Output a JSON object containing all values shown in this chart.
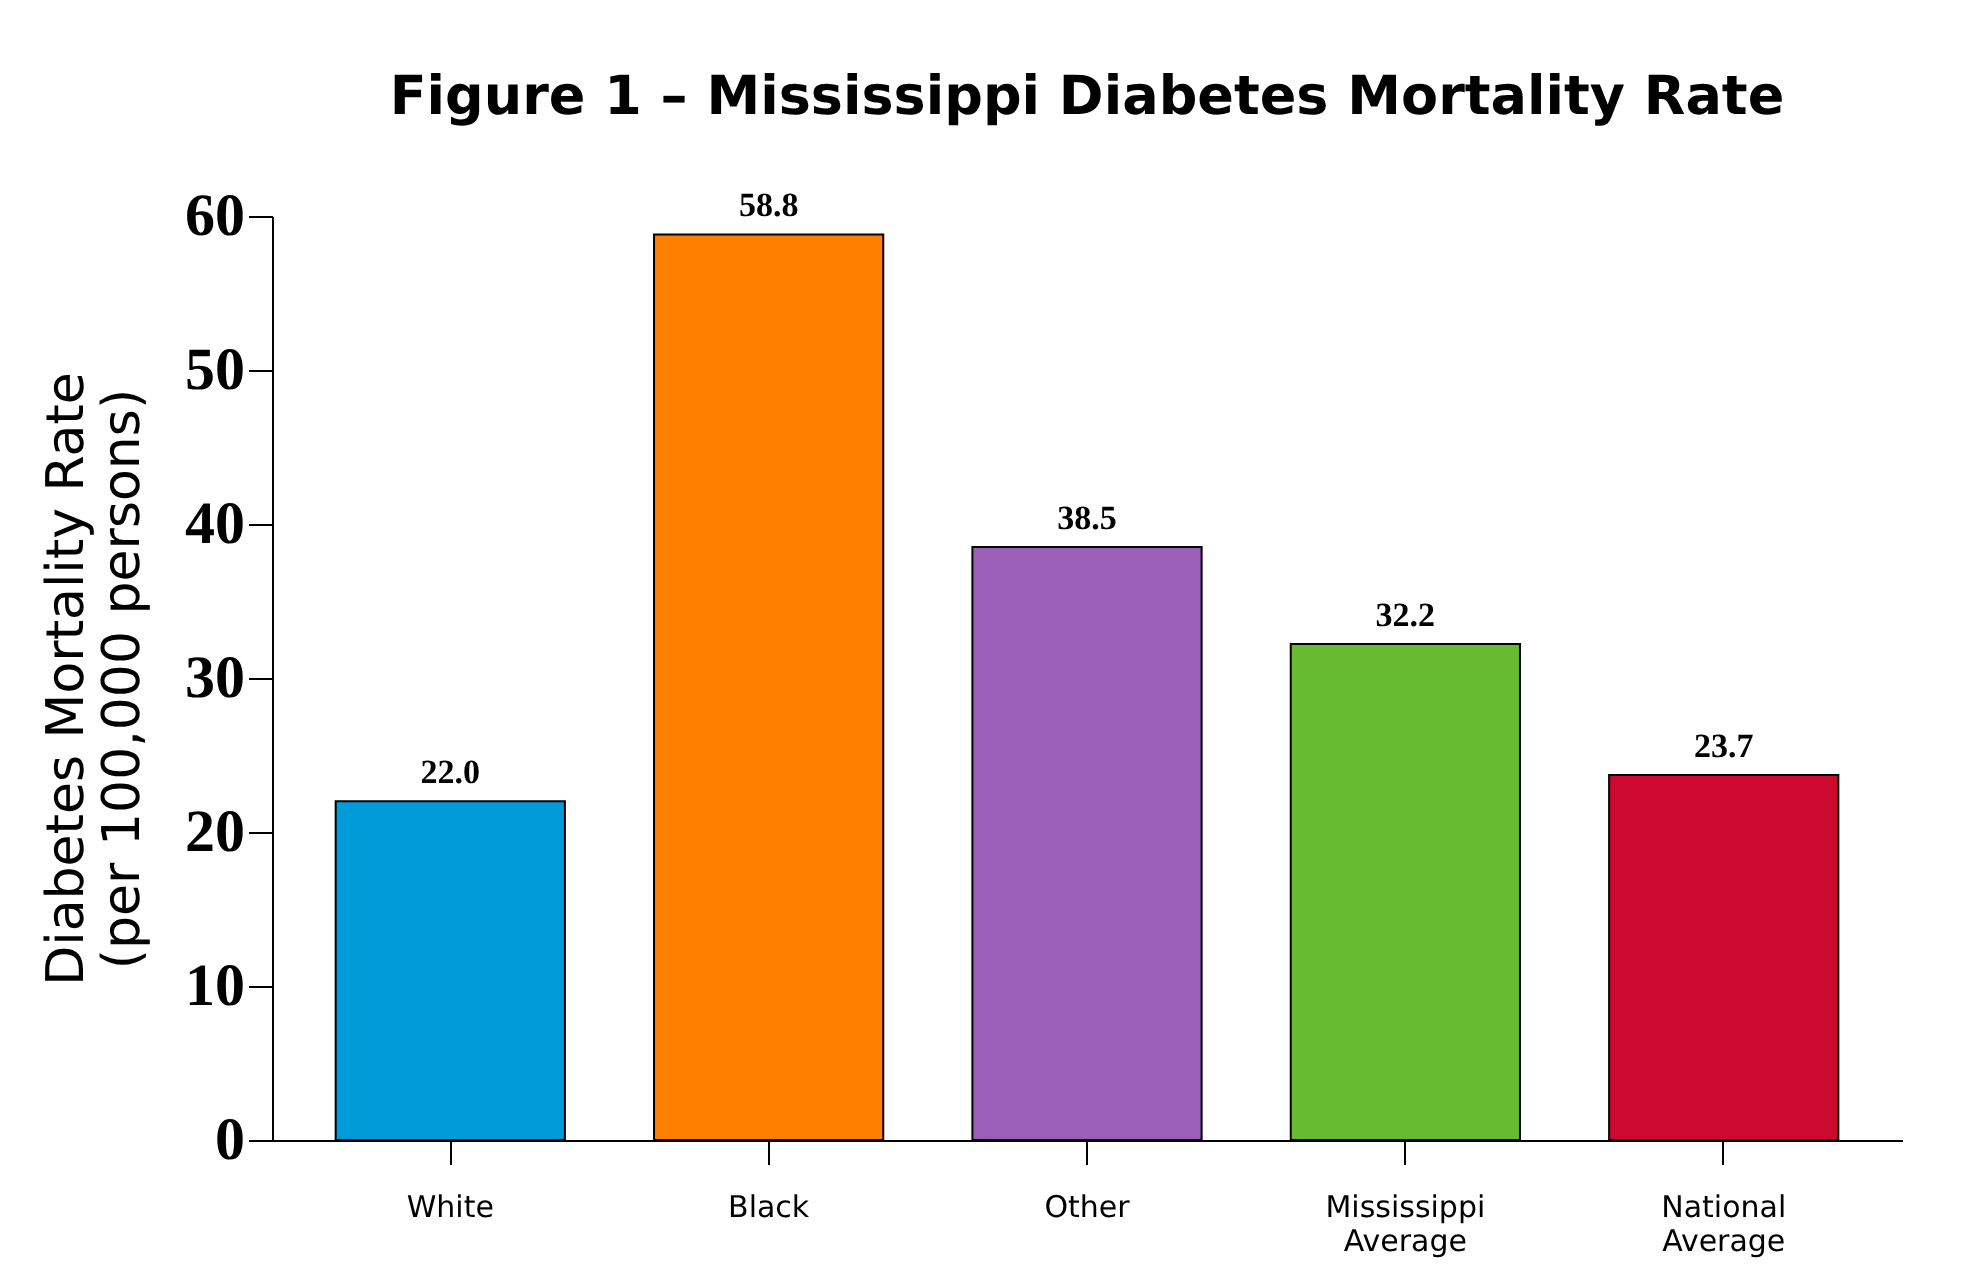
{
  "chart_data": {
    "type": "bar",
    "title": "Figure 1 – Mississippi Diabetes Mortality Rate",
    "ylabel": "Diabetes Mortality Rate\n(per 100,000 persons)",
    "categories": [
      "White",
      "Black",
      "Other",
      "Mississippi Average",
      "National Average"
    ],
    "values": [
      22.0,
      58.8,
      38.5,
      32.2,
      23.7
    ],
    "colors": [
      "#009bd9",
      "#ff7f00",
      "#9b5fb8",
      "#66bb2e",
      "#cc0a30"
    ],
    "ylim": [
      0,
      60
    ],
    "yticks": [
      0,
      10,
      20,
      30,
      40,
      50,
      60
    ],
    "value_labels": [
      "22.0",
      "58.8",
      "38.5",
      "32.2",
      "23.7"
    ],
    "grid": false
  }
}
